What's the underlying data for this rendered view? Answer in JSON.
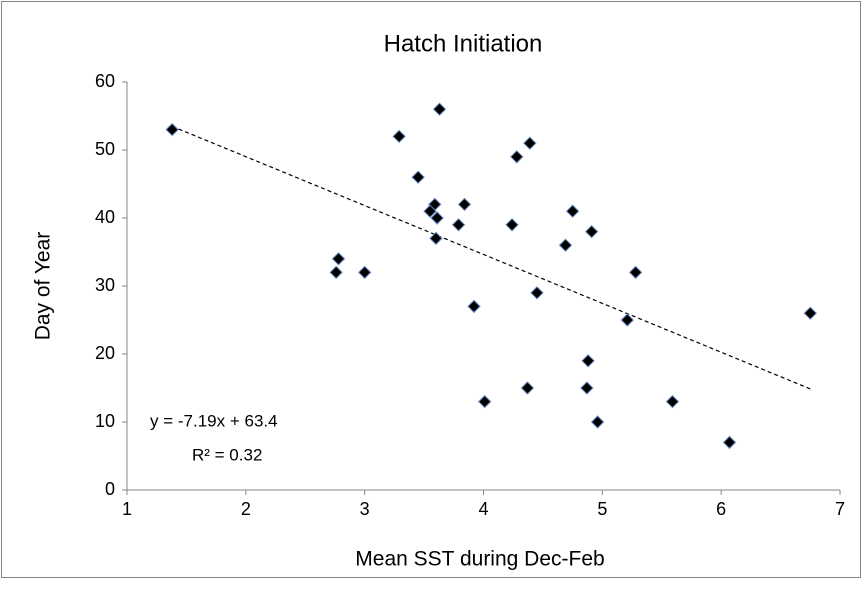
{
  "chart_data": {
    "type": "scatter",
    "title": "Hatch Initiation",
    "x_label": "Mean SST during Dec-Feb",
    "y_label": "Day of Year",
    "x": [
      1.38,
      3.29,
      3.63,
      3.45,
      4.28,
      4.39,
      3.59,
      3.55,
      3.61,
      3.84,
      3.79,
      3.6,
      4.24,
      4.75,
      4.69,
      4.91,
      2.78,
      2.76,
      3.0,
      5.28,
      3.92,
      4.45,
      5.21,
      6.75,
      4.88,
      4.87,
      4.37,
      4.01,
      5.59,
      4.96,
      6.07
    ],
    "values": [
      53,
      52,
      56,
      46,
      49,
      51,
      42,
      41,
      40,
      42,
      39,
      37,
      39,
      41,
      36,
      38,
      34,
      32,
      32,
      32,
      27,
      29,
      25,
      26,
      19,
      15,
      15,
      13,
      13,
      10,
      7
    ],
    "color": "#000000",
    "xlim": [
      1,
      7
    ],
    "xticks": [
      1,
      2,
      3,
      4,
      5,
      6,
      7
    ],
    "ylim": [
      0,
      60
    ],
    "yticks": [
      0,
      10,
      20,
      30,
      40,
      50,
      60
    ],
    "grid": false,
    "trendline": {
      "slope": -7.19,
      "intercept": 63.4,
      "equation": "y = -7.19x + 63.4",
      "r_squared": "R² = 0.32"
    }
  }
}
